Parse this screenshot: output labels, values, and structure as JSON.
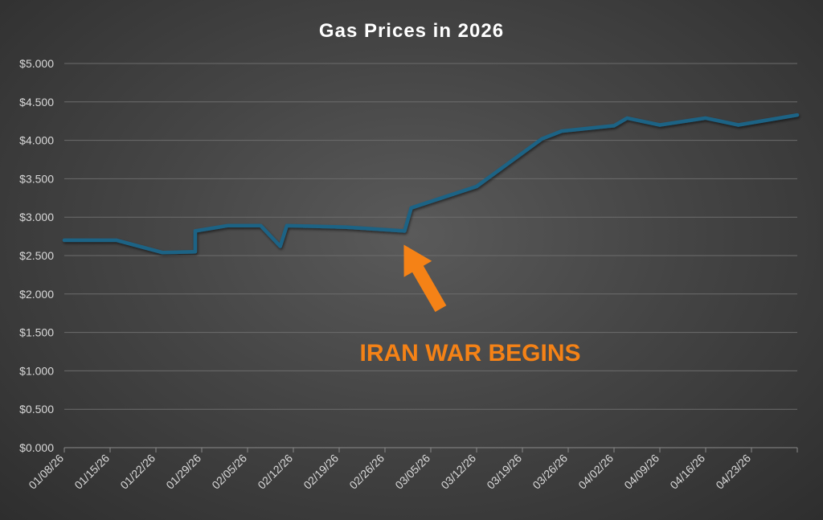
{
  "chart_data": {
    "type": "line",
    "title": "Gas Prices in 2026",
    "xlabel": "",
    "ylabel": "",
    "x_range": [
      "2026-01-08",
      "2026-04-30"
    ],
    "ylim": [
      0,
      5
    ],
    "y_ticks": [
      "$0.000",
      "$0.500",
      "$1.000",
      "$1.500",
      "$2.000",
      "$2.500",
      "$3.000",
      "$3.500",
      "$4.000",
      "$4.500",
      "$5.000"
    ],
    "x_ticks": [
      "01/08/26",
      "01/15/26",
      "01/22/26",
      "01/29/26",
      "02/05/26",
      "02/12/26",
      "02/19/26",
      "02/26/26",
      "03/05/26",
      "03/12/26",
      "03/19/26",
      "03/26/26",
      "04/02/26",
      "04/09/26",
      "04/16/26",
      "04/23/26"
    ],
    "grid": true,
    "legend": "none",
    "series": [
      {
        "color": "#1f6385",
        "points": [
          [
            "2026-01-08",
            2.7
          ],
          [
            "2026-01-16",
            2.7
          ],
          [
            "2026-01-23",
            2.54
          ],
          [
            "2026-01-28",
            2.55
          ],
          [
            "2026-01-28",
            2.82
          ],
          [
            "2026-02-02",
            2.89
          ],
          [
            "2026-02-07",
            2.89
          ],
          [
            "2026-02-10",
            2.62
          ],
          [
            "2026-02-11",
            2.89
          ],
          [
            "2026-02-20",
            2.87
          ],
          [
            "2026-03-01",
            2.82
          ],
          [
            "2026-03-02",
            3.12
          ],
          [
            "2026-03-12",
            3.4
          ],
          [
            "2026-03-22",
            4.02
          ],
          [
            "2026-03-25",
            4.12
          ],
          [
            "2026-04-02",
            4.19
          ],
          [
            "2026-04-04",
            4.29
          ],
          [
            "2026-04-09",
            4.2
          ],
          [
            "2026-04-16",
            4.29
          ],
          [
            "2026-04-21",
            4.2
          ],
          [
            "2026-04-30",
            4.33
          ]
        ]
      }
    ],
    "annotations": [
      {
        "text": "IRAN WAR BEGINS",
        "color": "#f58216",
        "points_to": [
          "2026-02-29",
          2.6
        ]
      }
    ]
  }
}
